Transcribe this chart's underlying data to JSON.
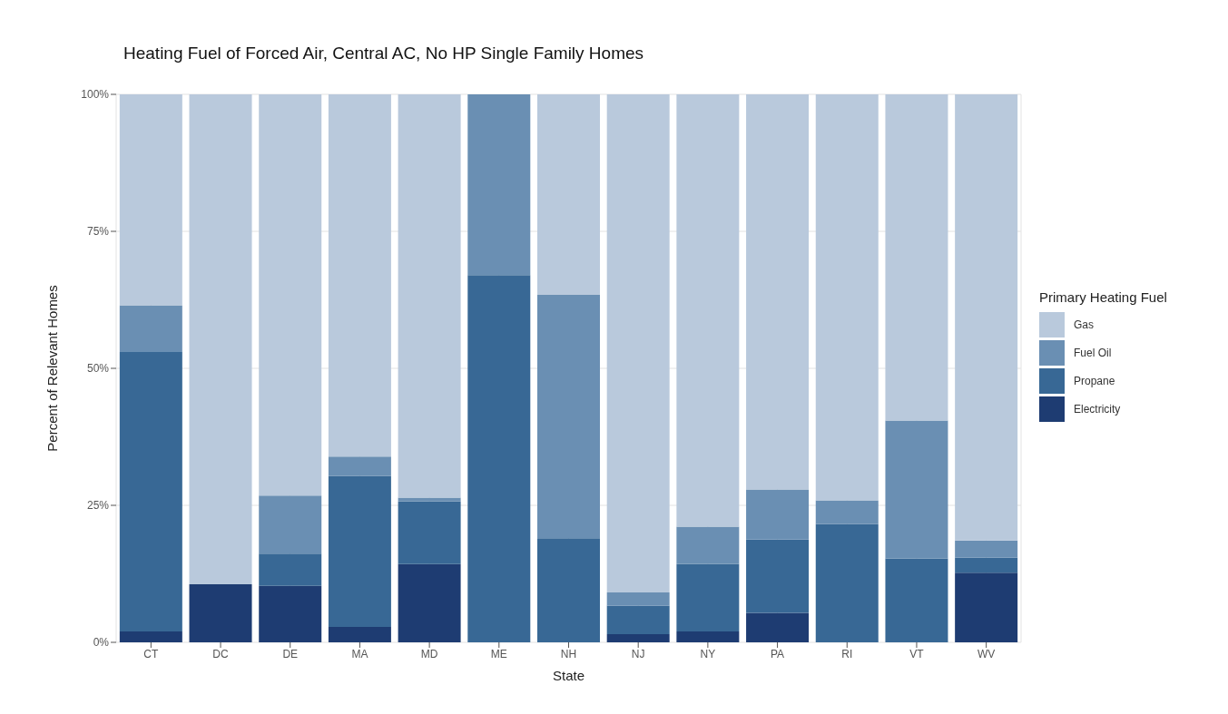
{
  "chart_data": {
    "type": "bar",
    "title": "Heating Fuel of Forced Air, Central AC, No HP Single Family Homes",
    "xlabel": "State",
    "ylabel": "Percent of Relevant Homes",
    "legend_title": "Primary Heating Fuel",
    "categories": [
      "CT",
      "DC",
      "DE",
      "MA",
      "MD",
      "ME",
      "NH",
      "NJ",
      "NY",
      "PA",
      "RI",
      "VT",
      "WV"
    ],
    "stacked": true,
    "series": [
      {
        "name": "Electricity",
        "color": "#1e3c72",
        "values": [
          2,
          10.6,
          10.3,
          2.8,
          14.3,
          0,
          0,
          1.5,
          2,
          5.4,
          0,
          0,
          12.7
        ]
      },
      {
        "name": "Propane",
        "color": "#386895",
        "values": [
          51,
          0,
          5.9,
          27.6,
          11.4,
          67,
          19,
          5.2,
          12.3,
          13.4,
          21.6,
          15.3,
          2.8
        ]
      },
      {
        "name": "Fuel Oil",
        "color": "#6a8fb3",
        "values": [
          8.5,
          0,
          10.6,
          3.5,
          0.7,
          33,
          44.4,
          2.4,
          6.8,
          9.1,
          4.3,
          25.2,
          3.1
        ]
      },
      {
        "name": "Gas",
        "color": "#b9c9dc",
        "values": [
          38.5,
          89.4,
          73.2,
          66.1,
          73.6,
          0,
          36.6,
          90.9,
          78.9,
          72.1,
          74.1,
          59.5,
          81.4
        ]
      }
    ],
    "ylim": [
      0,
      100
    ],
    "yticks": [
      {
        "value": 0,
        "label": "0%"
      },
      {
        "value": 25,
        "label": "25%"
      },
      {
        "value": 50,
        "label": "50%"
      },
      {
        "value": 75,
        "label": "75%"
      },
      {
        "value": 100,
        "label": "100%"
      }
    ],
    "grid": true,
    "legend": "right"
  }
}
